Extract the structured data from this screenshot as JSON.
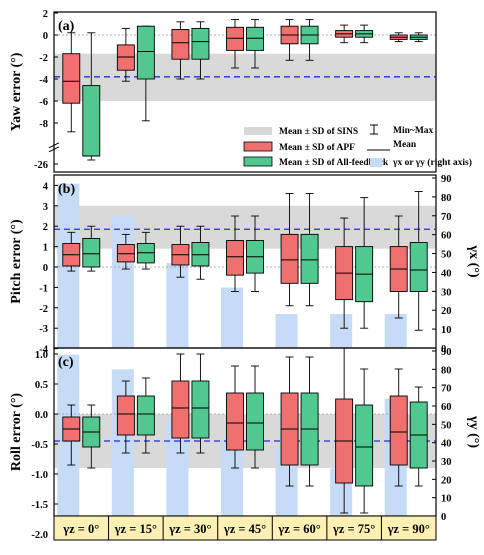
{
  "chart_data": [
    {
      "type": "box",
      "panel_label": "(a)",
      "ylabel": "Yaw error (°)",
      "ylim": [
        -26,
        2
      ],
      "y_break": [
        -9.8,
        -25
      ],
      "yticks": [
        "2",
        "0",
        "-2",
        "-4",
        "-6",
        "-8",
        "-26"
      ],
      "sins_band": {
        "mean": -3.8,
        "lower": -6.0,
        "upper": -1.7
      },
      "categories": [
        "γz = 0°",
        "γz = 15°",
        "γz = 30°",
        "γz = 45°",
        "γz = 60°",
        "γz = 75°",
        "γz = 90°"
      ],
      "series": [
        {
          "name": "Mean ± SD of APF",
          "color": "#f07070",
          "boxes": [
            {
              "min": -8.8,
              "q1": -6.2,
              "median": -4.2,
              "q3": -1.7,
              "max": 0.2
            },
            {
              "min": -4.2,
              "q1": -3.2,
              "median": -2.0,
              "q3": -0.9,
              "max": 0.6
            },
            {
              "min": -4.0,
              "q1": -2.2,
              "median": -0.7,
              "q3": 0.5,
              "max": 1.2
            },
            {
              "min": -3.0,
              "q1": -1.4,
              "median": -0.3,
              "q3": 0.7,
              "max": 1.4
            },
            {
              "min": -2.3,
              "q1": -0.8,
              "median": 0.0,
              "q3": 0.8,
              "max": 1.4
            },
            {
              "min": -0.7,
              "q1": -0.2,
              "median": 0.1,
              "q3": 0.4,
              "max": 0.9
            },
            {
              "min": -0.6,
              "q1": -0.4,
              "median": -0.2,
              "q3": 0.0,
              "max": 0.2
            }
          ]
        },
        {
          "name": "Mean ± SD of All-feedback",
          "color": "#50c890",
          "boxes": [
            {
              "min": -25.5,
              "q1": -25.0,
              "median": -25.0,
              "q3": -4.6,
              "max": 0.2
            },
            {
              "min": -7.8,
              "q1": -4.0,
              "median": -1.5,
              "q3": 0.8,
              "max": 0.8
            },
            {
              "min": -4.0,
              "q1": -2.2,
              "median": -0.6,
              "q3": 0.6,
              "max": 1.2
            },
            {
              "min": -3.0,
              "q1": -1.4,
              "median": -0.3,
              "q3": 0.7,
              "max": 1.4
            },
            {
              "min": -2.3,
              "q1": -0.8,
              "median": 0.0,
              "q3": 0.8,
              "max": 1.4
            },
            {
              "min": -0.7,
              "q1": -0.2,
              "median": 0.1,
              "q3": 0.4,
              "max": 0.9
            },
            {
              "min": -0.6,
              "q1": -0.4,
              "median": -0.2,
              "q3": 0.0,
              "max": 0.2
            }
          ]
        }
      ]
    },
    {
      "type": "box",
      "panel_label": "(b)",
      "ylabel": "Pitch error (°)",
      "ylim": [
        -4,
        4
      ],
      "yticks": [
        "4",
        "3",
        "2",
        "1",
        "0",
        "-1",
        "-2",
        "-3",
        "-4"
      ],
      "right_axis": {
        "label": "γx (°)",
        "ylim": [
          0,
          90
        ],
        "ticks": [
          "0",
          "10",
          "20",
          "30",
          "40",
          "50",
          "60",
          "70",
          "80",
          "90"
        ]
      },
      "sins_band": {
        "mean": 1.85,
        "lower": 0.9,
        "upper": 3.0
      },
      "gamma_bars": [
        87,
        70,
        45,
        32,
        18,
        18,
        18
      ],
      "series": [
        {
          "name": "Mean ± SD of APF",
          "color": "#f07070",
          "boxes": [
            {
              "min": -0.2,
              "q1": 0.05,
              "median": 0.6,
              "q3": 1.15,
              "max": 1.7
            },
            {
              "min": -0.1,
              "q1": 0.25,
              "median": 0.65,
              "q3": 1.1,
              "max": 1.6
            },
            {
              "min": -0.5,
              "q1": 0.1,
              "median": 0.6,
              "q3": 1.1,
              "max": 2.0
            },
            {
              "min": -1.2,
              "q1": -0.4,
              "median": 0.5,
              "q3": 1.3,
              "max": 2.5
            },
            {
              "min": -1.9,
              "q1": -0.8,
              "median": 0.35,
              "q3": 1.6,
              "max": 3.6
            },
            {
              "min": -3.0,
              "q1": -1.6,
              "median": -0.3,
              "q3": 1.0,
              "max": 2.4
            },
            {
              "min": -2.5,
              "q1": -1.2,
              "median": -0.1,
              "q3": 1.0,
              "max": 2.5
            }
          ]
        },
        {
          "name": "Mean ± SD of All-feedback",
          "color": "#50c890",
          "boxes": [
            {
              "min": -0.2,
              "q1": 0.0,
              "median": 0.65,
              "q3": 1.4,
              "max": 2.0
            },
            {
              "min": -0.1,
              "q1": 0.2,
              "median": 0.7,
              "q3": 1.15,
              "max": 1.7
            },
            {
              "min": -0.6,
              "q1": 0.05,
              "median": 0.6,
              "q3": 1.2,
              "max": 2.0
            },
            {
              "min": -1.2,
              "q1": -0.3,
              "median": 0.5,
              "q3": 1.3,
              "max": 2.5
            },
            {
              "min": -1.9,
              "q1": -0.8,
              "median": 0.35,
              "q3": 1.6,
              "max": 3.6
            },
            {
              "min": -3.0,
              "q1": -1.7,
              "median": -0.35,
              "q3": 1.0,
              "max": 3.4
            },
            {
              "min": -3.1,
              "q1": -1.2,
              "median": -0.15,
              "q3": 1.2,
              "max": 3.7
            }
          ]
        }
      ]
    },
    {
      "type": "box",
      "panel_label": "(c)",
      "ylabel": "Roll error (°)",
      "ylim": [
        -2.0,
        1.2
      ],
      "yticks": [
        "1.0",
        "0.5",
        "0.0",
        "-0.5",
        "-1.0",
        "-1.5",
        "-2.0"
      ],
      "right_axis": {
        "label": "γy (°)",
        "ylim": [
          0,
          90
        ],
        "ticks": [
          "0",
          "10",
          "20",
          "30",
          "40",
          "50",
          "60",
          "70",
          "80",
          "90"
        ]
      },
      "sins_band": {
        "mean": -0.45,
        "lower": -0.9,
        "upper": 0.0
      },
      "gamma_bars": [
        88,
        80,
        53,
        42,
        38,
        26,
        64
      ],
      "series": [
        {
          "name": "Mean ± SD of APF",
          "color": "#f07070",
          "boxes": [
            {
              "min": -0.85,
              "q1": -0.45,
              "median": -0.25,
              "q3": -0.05,
              "max": 0.15
            },
            {
              "min": -0.65,
              "q1": -0.35,
              "median": 0.0,
              "q3": 0.3,
              "max": 0.55
            },
            {
              "min": -0.65,
              "q1": -0.4,
              "median": 0.1,
              "q3": 0.55,
              "max": 1.0
            },
            {
              "min": -0.9,
              "q1": -0.6,
              "median": -0.15,
              "q3": 0.35,
              "max": 0.8
            },
            {
              "min": -1.2,
              "q1": -0.85,
              "median": -0.25,
              "q3": 0.35,
              "max": 0.95
            },
            {
              "min": -1.65,
              "q1": -1.15,
              "median": -0.45,
              "q3": 0.25,
              "max": 1.1
            },
            {
              "min": -1.2,
              "q1": -0.85,
              "median": -0.3,
              "q3": 0.3,
              "max": 0.75
            }
          ]
        },
        {
          "name": "Mean ± SD of All-feedback",
          "color": "#50c890",
          "boxes": [
            {
              "min": -0.9,
              "q1": -0.55,
              "median": -0.3,
              "q3": -0.05,
              "max": 0.15
            },
            {
              "min": -0.65,
              "q1": -0.35,
              "median": 0.0,
              "q3": 0.3,
              "max": 0.6
            },
            {
              "min": -0.65,
              "q1": -0.4,
              "median": 0.1,
              "q3": 0.55,
              "max": 1.0
            },
            {
              "min": -0.9,
              "q1": -0.6,
              "median": -0.15,
              "q3": 0.35,
              "max": 0.8
            },
            {
              "min": -1.2,
              "q1": -0.85,
              "median": -0.25,
              "q3": 0.35,
              "max": 0.95
            },
            {
              "min": -1.65,
              "q1": -1.2,
              "median": -0.55,
              "q3": 0.15,
              "max": 0.75
            },
            {
              "min": -1.2,
              "q1": -0.9,
              "median": -0.35,
              "q3": 0.2,
              "max": 0.45
            }
          ]
        }
      ]
    }
  ],
  "legend": {
    "sins": "Mean ± SD of SINS",
    "apf": "Mean ± SD of APF",
    "allfb": "Mean ± SD of All-feedback",
    "minmax": "Min~Max",
    "mean": "Mean",
    "gamma": "γx  or  γy  (right axis)"
  },
  "colors": {
    "apf": "#f07070",
    "allfeedback": "#50c890",
    "sins_band": "#d9d9d9",
    "gamma_bars": "#c6dbf5",
    "sins_mean_line": "#2b2bd6",
    "category_bg": "#fcf0b4"
  }
}
